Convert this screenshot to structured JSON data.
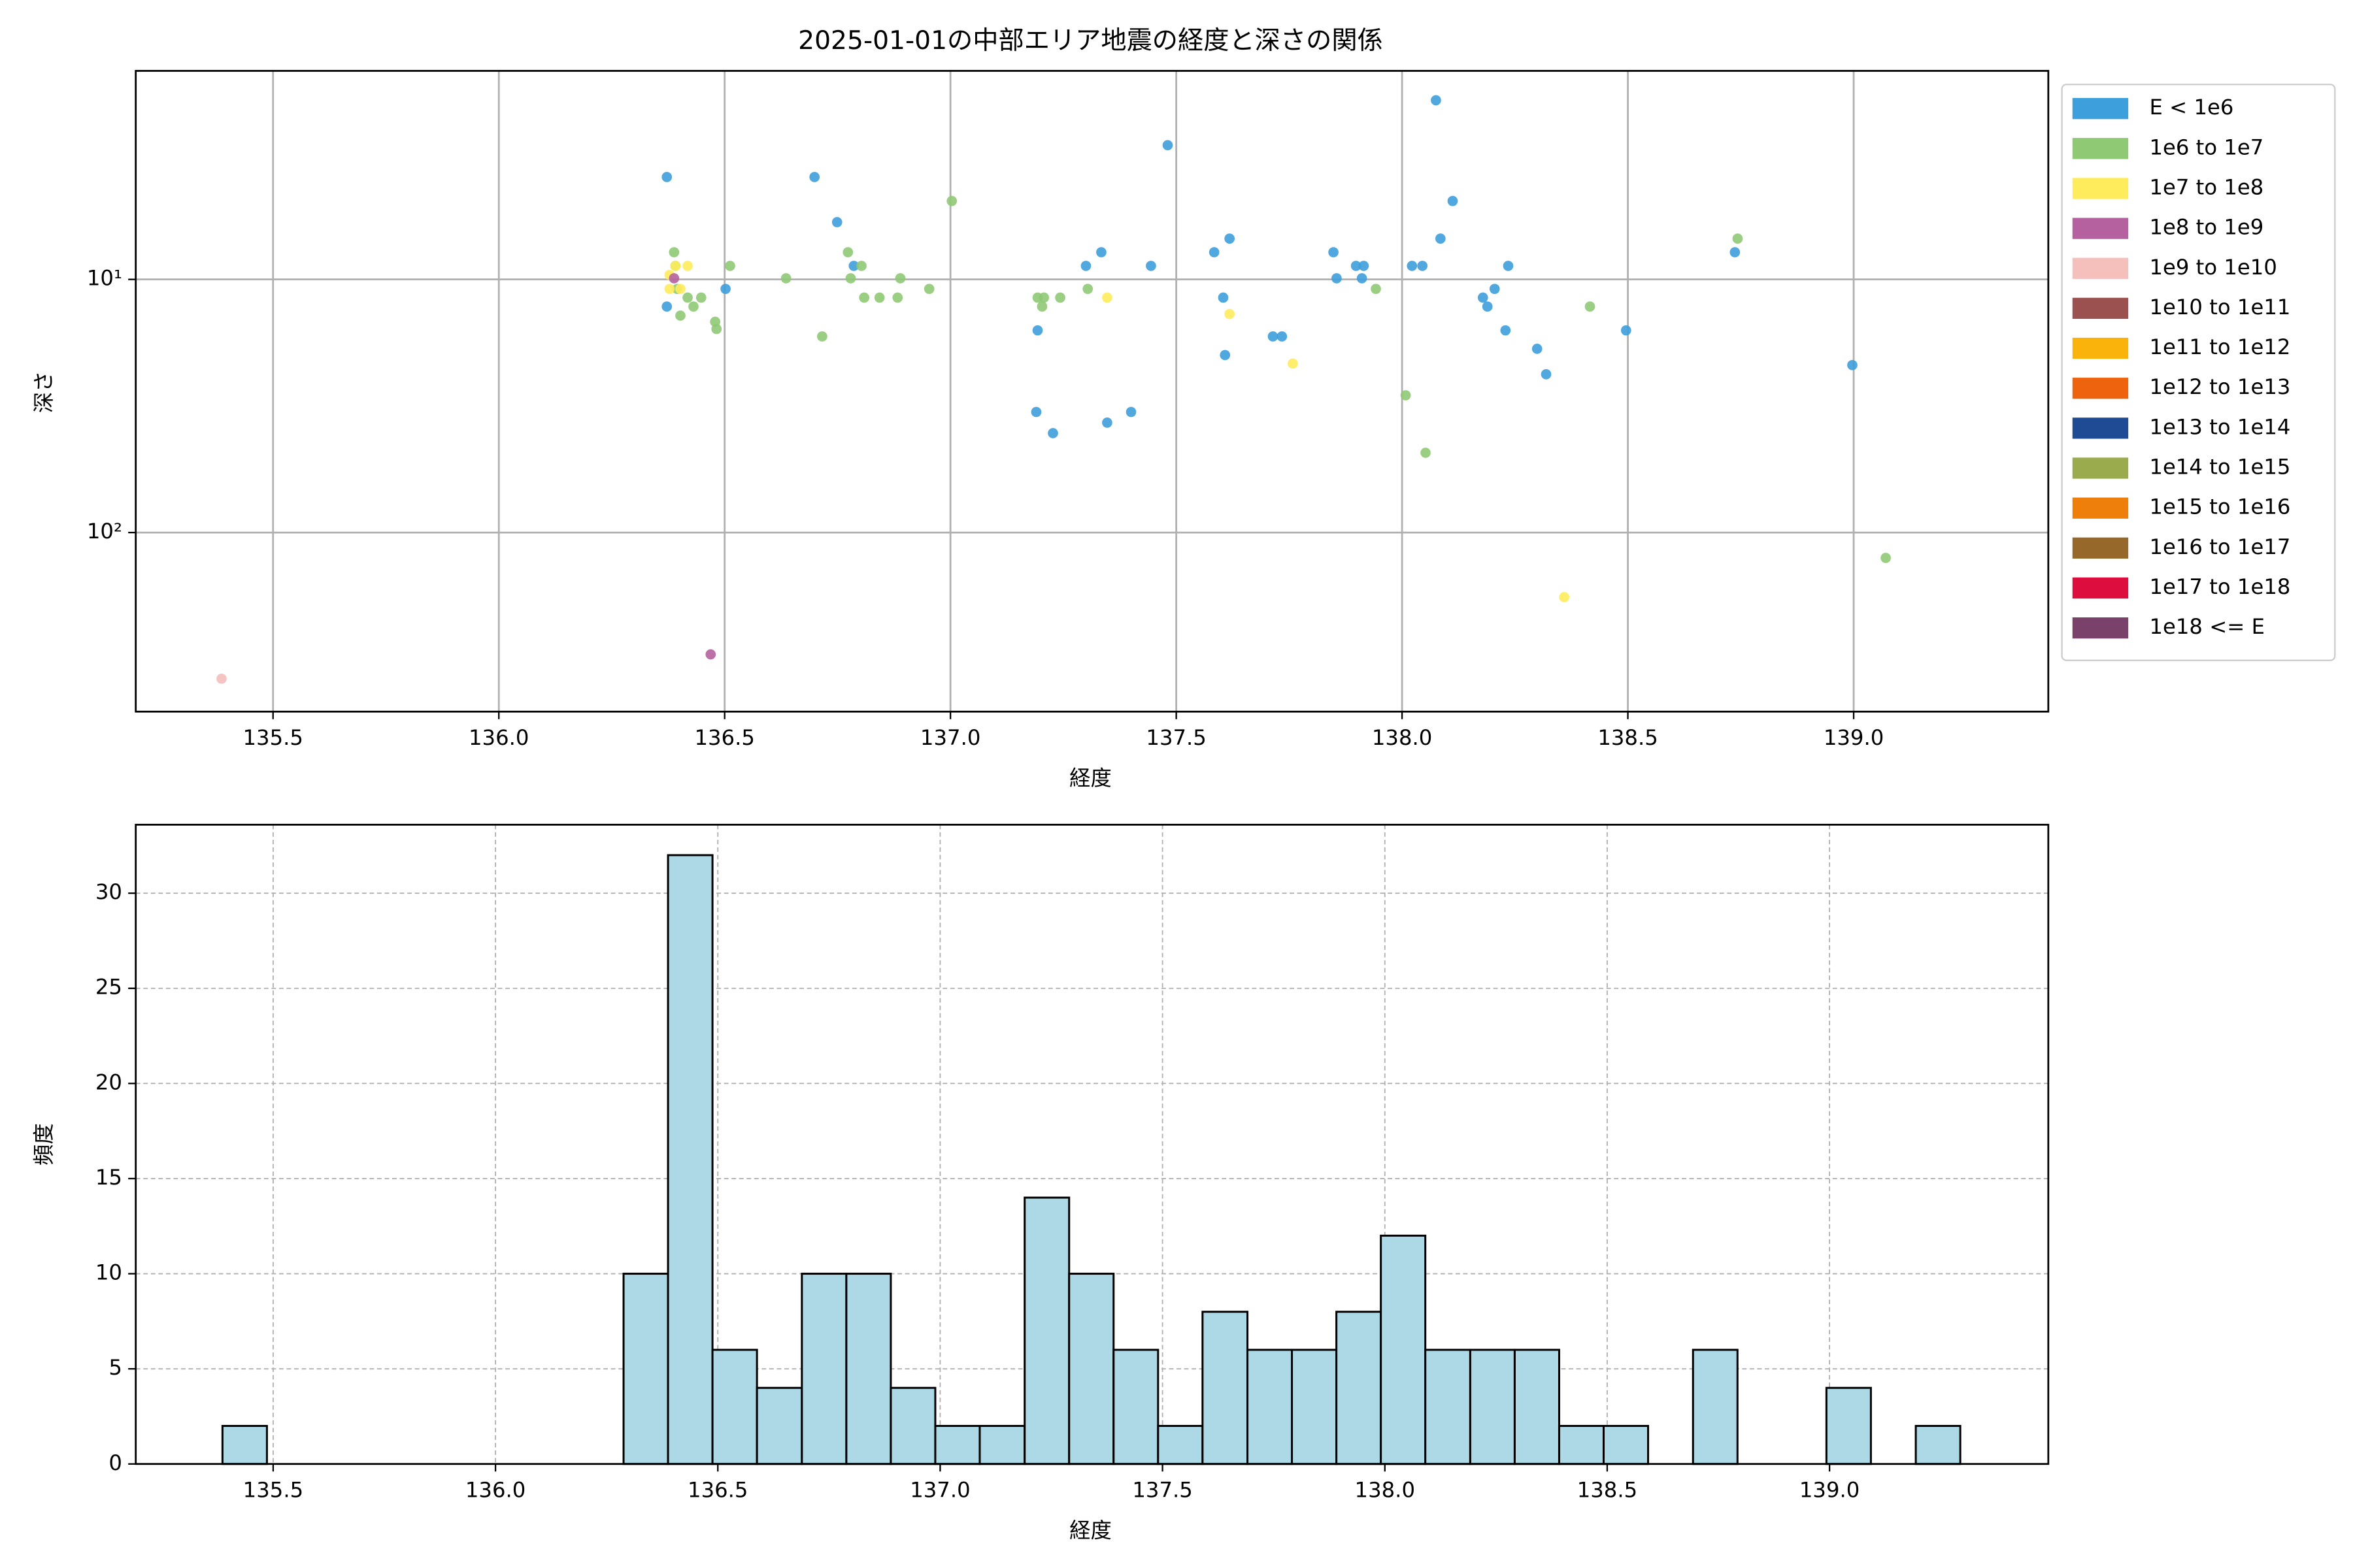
{
  "chart_data": [
    {
      "type": "scatter",
      "title": "2025-01-01の中部エリア地震の経度と深さの関係",
      "xlabel": "経度",
      "ylabel": "深さ",
      "yscale": "log",
      "grid": true,
      "grid_linestyle": "solid",
      "legend": "outside upper right",
      "xlim": [
        135.196,
        139.431
      ],
      "xticks": [
        135.5,
        {
          "value": 136,
          "label": "136.0"
        },
        136.5,
        {
          "value": 137,
          "label": "137.0"
        },
        137.5,
        {
          "value": 138,
          "label": "138.0"
        },
        138.5,
        {
          "value": 139,
          "label": "139.0"
        }
      ],
      "ylim": [
        510,
        1.5
      ],
      "yticks": [
        {
          "value": 10,
          "label": "10¹"
        },
        {
          "value": 100,
          "label": "10²"
        }
      ],
      "series": [
        {
          "name": "E < 1e6",
          "color": "#3d9fdb",
          "x": [
            136.372,
            136.372,
            136.502,
            136.699,
            136.749,
            136.786,
            137.193,
            137.19,
            137.227,
            137.3,
            137.334,
            137.347,
            137.4,
            137.444,
            137.481,
            137.584,
            137.604,
            137.608,
            137.618,
            137.714,
            137.734,
            137.848,
            137.855,
            137.898,
            137.915,
            137.911,
            138.022,
            138.045,
            138.075,
            138.085,
            138.112,
            138.179,
            138.189,
            138.205,
            138.229,
            138.235,
            138.299,
            138.319,
            138.496,
            138.737,
            138.997
          ],
          "values": [
            3.94,
            12.8,
            10.9,
            3.94,
            5.94,
            8.84,
            15.9,
            33.4,
            40.5,
            8.84,
            7.81,
            36.8,
            33.4,
            8.84,
            2.95,
            7.81,
            11.8,
            19.9,
            6.9,
            16.8,
            16.8,
            7.81,
            9.9,
            8.84,
            8.84,
            9.9,
            8.84,
            8.84,
            1.96,
            6.9,
            4.9,
            11.8,
            12.8,
            10.9,
            15.9,
            8.84,
            18.8,
            23.7,
            15.9,
            7.81,
            21.8
          ]
        },
        {
          "name": "1e6 to 1e7",
          "color": "#8fc974",
          "x": [
            136.388,
            136.391,
            136.395,
            136.402,
            136.418,
            136.431,
            136.448,
            136.479,
            136.482,
            136.512,
            136.636,
            136.716,
            136.773,
            136.779,
            136.803,
            136.809,
            136.843,
            136.883,
            136.889,
            136.953,
            137.003,
            137.193,
            137.207,
            137.203,
            137.243,
            137.304,
            137.942,
            138.008,
            138.052,
            138.416,
            138.743,
            139.071
          ],
          "values": [
            7.81,
            8.84,
            10.9,
            13.9,
            11.8,
            12.8,
            11.8,
            14.7,
            15.7,
            8.84,
            9.9,
            16.8,
            7.81,
            9.9,
            8.84,
            11.8,
            11.8,
            11.8,
            9.9,
            10.9,
            4.9,
            11.8,
            11.8,
            12.8,
            11.8,
            10.9,
            10.9,
            28.7,
            48.4,
            12.8,
            6.9,
            126
          ]
        },
        {
          "name": "1e7 to 1e8",
          "color": "#ffec5c",
          "x": [
            136.378,
            136.391,
            136.402,
            136.418,
            136.378,
            137.347,
            137.618,
            137.758,
            138.359
          ],
          "values": [
            9.6,
            8.84,
            10.9,
            8.84,
            10.9,
            11.8,
            13.7,
            21.5,
            180
          ]
        },
        {
          "name": "1e8 to 1e9",
          "color": "#b5619f",
          "x": [
            136.388,
            136.469
          ],
          "values": [
            9.9,
            303
          ]
        },
        {
          "name": "1e9 to 1e10",
          "color": "#f5bfbc",
          "x": [
            135.386
          ],
          "values": [
            378
          ]
        },
        {
          "name": "1e10 to 1e11",
          "color": "#9b5150",
          "x": [],
          "values": []
        },
        {
          "name": "1e11 to 1e12",
          "color": "#f9b30a",
          "x": [],
          "values": []
        },
        {
          "name": "1e12 to 1e13",
          "color": "#ee640e",
          "x": [],
          "values": []
        },
        {
          "name": "1e13 to 1e14",
          "color": "#1e4b94",
          "x": [],
          "values": []
        },
        {
          "name": "1e14 to 1e15",
          "color": "#9aab4e",
          "x": [],
          "values": []
        },
        {
          "name": "1e15 to 1e16",
          "color": "#ee7f0b",
          "x": [],
          "values": []
        },
        {
          "name": "1e16 to 1e17",
          "color": "#96692b",
          "x": [],
          "values": []
        },
        {
          "name": "1e17 to 1e18",
          "color": "#dd0e3e",
          "x": [],
          "values": []
        },
        {
          "name": "1e18 <= E",
          "color": "#7a416b",
          "x": [],
          "values": []
        }
      ]
    },
    {
      "type": "histogram",
      "xlabel": "経度",
      "ylabel": "頻度",
      "grid": true,
      "grid_linestyle": "dashed",
      "color": "#add8e6",
      "edgecolor": "#000000",
      "xlim": [
        135.191,
        139.492
      ],
      "xticks": [
        135.5,
        {
          "value": 136,
          "label": "136.0"
        },
        136.5,
        {
          "value": 137,
          "label": "137.0"
        },
        137.5,
        {
          "value": 138,
          "label": "138.0"
        },
        138.5,
        {
          "value": 139,
          "label": "139.0"
        }
      ],
      "ylim": [
        0,
        33.6
      ],
      "yticks": [
        0,
        5,
        10,
        15,
        20,
        25,
        30
      ],
      "bins": [
        135.386,
        135.486,
        135.586,
        135.687,
        135.787,
        135.887,
        135.987,
        136.087,
        136.188,
        136.288,
        136.388,
        136.488,
        136.588,
        136.689,
        136.789,
        136.889,
        136.989,
        137.089,
        137.19,
        137.29,
        137.39,
        137.49,
        137.59,
        137.691,
        137.791,
        137.891,
        137.991,
        138.091,
        138.192,
        138.292,
        138.392,
        138.492,
        138.592,
        138.693,
        138.793,
        138.893,
        138.993,
        139.093,
        139.194,
        139.294
      ],
      "values": [
        2,
        0,
        0,
        0,
        0,
        0,
        0,
        0,
        0,
        10,
        32,
        6,
        4,
        10,
        10,
        4,
        2,
        2,
        14,
        10,
        6,
        2,
        8,
        6,
        6,
        8,
        12,
        6,
        6,
        6,
        2,
        2,
        0,
        6,
        0,
        0,
        4,
        0,
        2
      ]
    }
  ]
}
